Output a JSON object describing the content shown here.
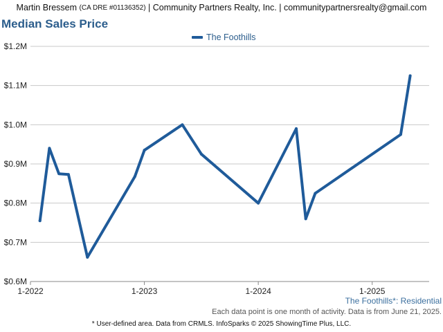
{
  "header": {
    "agent_name": "Martin Bressem",
    "license": "(CA DRE #01136352)",
    "brokerage": "| Community Partners Realty, Inc. |",
    "email": "communitypartnersrealty@gmail.com"
  },
  "chart_data": {
    "type": "line",
    "title": "Median Sales Price",
    "xlabel": "",
    "ylabel": "",
    "ylim": [
      600000,
      1200000
    ],
    "y_ticks": [
      600000,
      700000,
      800000,
      900000,
      1000000,
      1100000,
      1200000
    ],
    "y_tick_labels": [
      "$0.6M",
      "$0.7M",
      "$0.8M",
      "$0.9M",
      "$1.0M",
      "$1.1M",
      "$1.2M"
    ],
    "x_ticks": [
      "2022-01",
      "2023-01",
      "2024-01",
      "2025-01"
    ],
    "x_tick_labels": [
      "1-2022",
      "1-2023",
      "1-2024",
      "1-2025"
    ],
    "xlim": [
      "2022-01",
      "2025-07"
    ],
    "grid": "horizontal",
    "legend": "top-center",
    "series": [
      {
        "name": "The Foothills",
        "color": "#1f5b9a",
        "points": [
          {
            "x": "2022-02",
            "y": 755000
          },
          {
            "x": "2022-03",
            "y": 940000
          },
          {
            "x": "2022-04",
            "y": 875000
          },
          {
            "x": "2022-05",
            "y": 873000
          },
          {
            "x": "2022-07",
            "y": 662000
          },
          {
            "x": "2022-12",
            "y": 868000
          },
          {
            "x": "2023-01",
            "y": 935000
          },
          {
            "x": "2023-05",
            "y": 1000000
          },
          {
            "x": "2023-07",
            "y": 925000
          },
          {
            "x": "2024-01",
            "y": 800000
          },
          {
            "x": "2024-05",
            "y": 990000
          },
          {
            "x": "2024-06",
            "y": 760000
          },
          {
            "x": "2024-07",
            "y": 825000
          },
          {
            "x": "2025-04",
            "y": 975000
          },
          {
            "x": "2025-05",
            "y": 1125000
          }
        ]
      }
    ]
  },
  "area_label": "The Foothills*: Residential",
  "note": "Each data point is one month of activity. Data is from June 21, 2025.",
  "footer": "* User-defined area. Data from CRMLS. InfoSparks © 2025 ShowingTime Plus, LLC."
}
